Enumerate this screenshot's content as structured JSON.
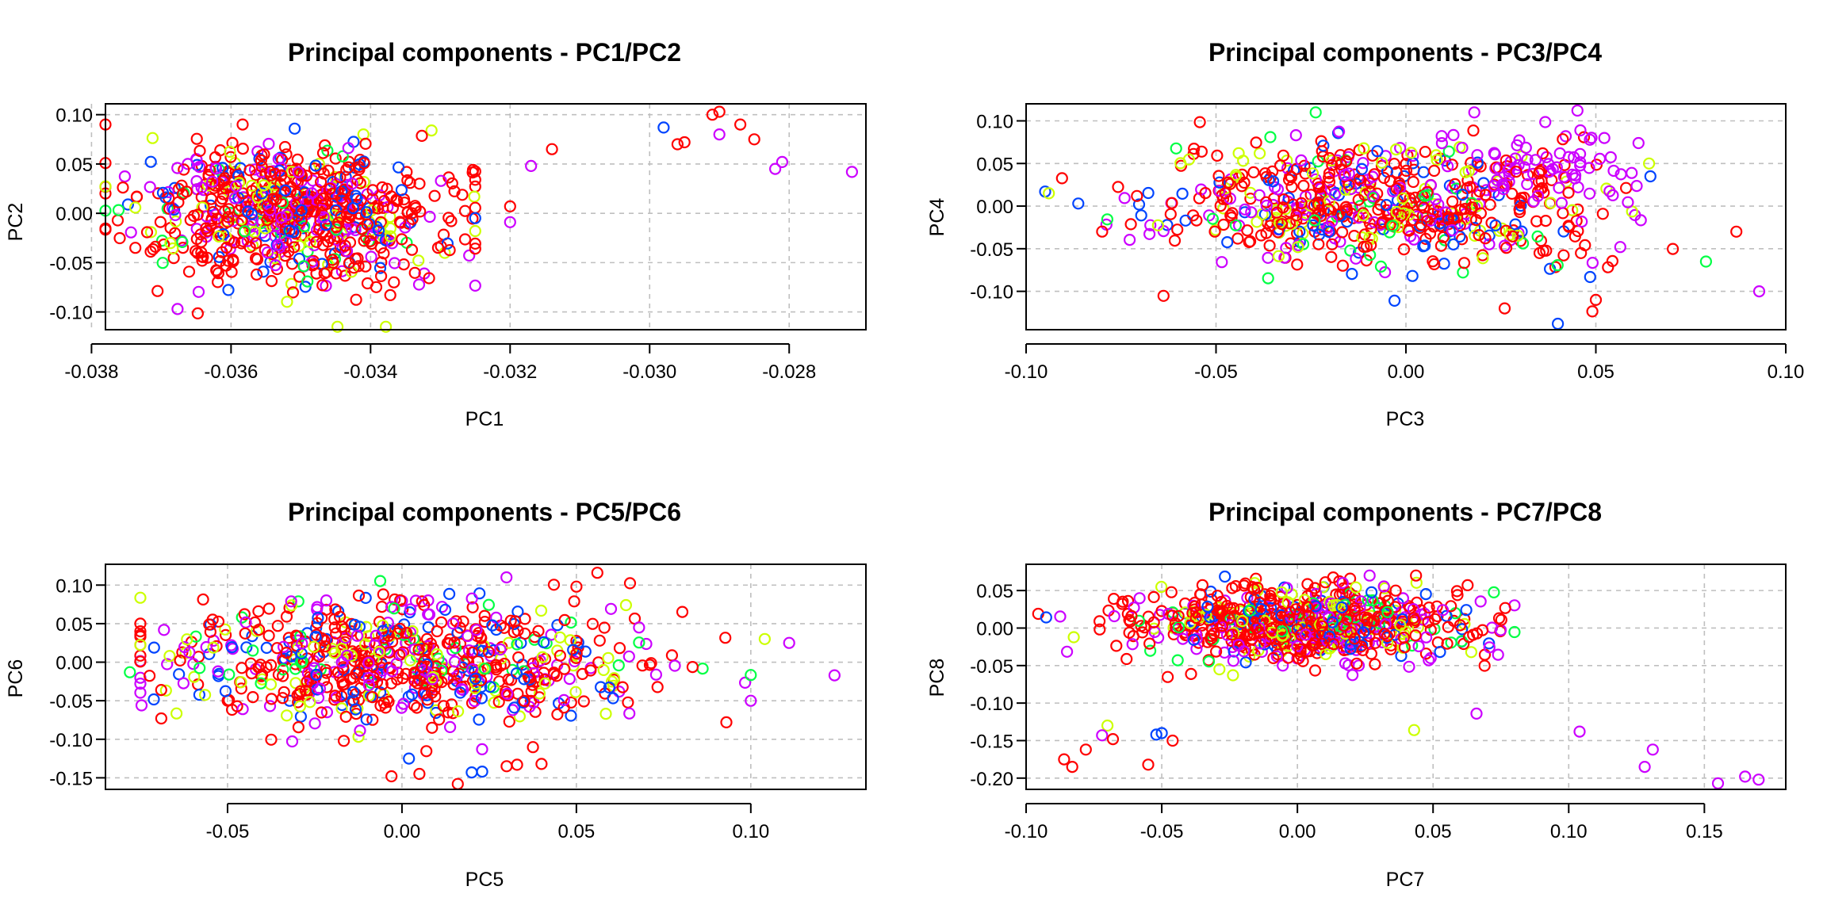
{
  "colors": {
    "red": "#ff0000",
    "magenta": "#cc00ff",
    "blue": "#0044ff",
    "yellow": "#ccff00",
    "green": "#00ff44",
    "grid": "#bfbfbf",
    "frame": "#000000"
  },
  "marker": "open-circle",
  "grid": true,
  "chart_data": [
    {
      "type": "scatter",
      "title": "Principal components - PC1/PC2",
      "xlabel": "PC1",
      "ylabel": "PC2",
      "xlim": [
        -0.0378,
        -0.0269
      ],
      "ylim": [
        -0.118,
        0.111
      ],
      "xticks": [
        -0.038,
        -0.036,
        -0.034,
        -0.032,
        -0.03,
        -0.028
      ],
      "xticklabels": [
        "-0.038",
        "-0.036",
        "-0.034",
        "-0.032",
        "-0.030",
        "-0.028"
      ],
      "yticks": [
        -0.1,
        -0.05,
        0,
        0.05,
        0.1
      ],
      "yticklabels": [
        "-0.10",
        "-0.05",
        "0.00",
        "0.05",
        "0.10"
      ],
      "cluster": {
        "cx": -0.0352,
        "sx": 0.0011,
        "xmin": -0.0378,
        "xmax": -0.0325,
        "cy": 0.0,
        "sy": 0.035,
        "ymin": -0.115,
        "ymax": 0.09
      },
      "outliers": [
        {
          "x": -0.0291,
          "y": 0.1,
          "c": "red"
        },
        {
          "x": -0.029,
          "y": 0.103,
          "c": "red"
        },
        {
          "x": -0.0287,
          "y": 0.09,
          "c": "red"
        },
        {
          "x": -0.0285,
          "y": 0.075,
          "c": "red"
        },
        {
          "x": -0.029,
          "y": 0.08,
          "c": "magenta"
        },
        {
          "x": -0.0296,
          "y": 0.07,
          "c": "red"
        },
        {
          "x": -0.0295,
          "y": 0.072,
          "c": "red"
        },
        {
          "x": -0.0298,
          "y": 0.087,
          "c": "blue"
        },
        {
          "x": -0.0281,
          "y": 0.052,
          "c": "magenta"
        },
        {
          "x": -0.0282,
          "y": 0.045,
          "c": "magenta"
        },
        {
          "x": -0.0271,
          "y": 0.042,
          "c": "magenta"
        },
        {
          "x": -0.0314,
          "y": 0.065,
          "c": "red"
        },
        {
          "x": -0.0317,
          "y": 0.048,
          "c": "magenta"
        },
        {
          "x": -0.032,
          "y": 0.007,
          "c": "red"
        },
        {
          "x": -0.032,
          "y": -0.009,
          "c": "magenta"
        }
      ]
    },
    {
      "type": "scatter",
      "title": "Principal components - PC3/PC4",
      "xlabel": "PC3",
      "ylabel": "PC4",
      "xlim": [
        -0.1,
        0.1
      ],
      "ylim": [
        -0.145,
        0.12
      ],
      "xticks": [
        -0.1,
        -0.05,
        0,
        0.05,
        0.1
      ],
      "xticklabels": [
        "-0.10",
        "-0.05",
        "0.00",
        "0.05",
        "0.10"
      ],
      "yticks": [
        -0.1,
        -0.05,
        0,
        0.05,
        0.1
      ],
      "yticklabels": [
        "-0.10",
        "-0.05",
        "0.00",
        "0.05",
        "0.10"
      ],
      "cluster": {
        "cx": -0.01,
        "sx": 0.03,
        "xmin": -0.095,
        "xmax": 0.09,
        "cy": 0.0,
        "sy": 0.035,
        "ymin": -0.135,
        "ymax": 0.11
      },
      "cluster2": {
        "cx": 0.04,
        "sx": 0.015,
        "cy": 0.045,
        "sy": 0.025,
        "n": 75,
        "c": "magenta"
      },
      "outliers": [
        {
          "x": -0.094,
          "y": 0.015,
          "c": "yellow"
        },
        {
          "x": 0.093,
          "y": -0.1,
          "c": "magenta"
        },
        {
          "x": 0.079,
          "y": -0.065,
          "c": "green"
        },
        {
          "x": 0.087,
          "y": -0.03,
          "c": "red"
        },
        {
          "x": 0.04,
          "y": -0.138,
          "c": "blue"
        },
        {
          "x": 0.026,
          "y": -0.12,
          "c": "red"
        },
        {
          "x": 0.018,
          "y": 0.11,
          "c": "magenta"
        },
        {
          "x": -0.003,
          "y": -0.111,
          "c": "blue"
        },
        {
          "x": 0.05,
          "y": -0.11,
          "c": "red"
        },
        {
          "x": 0.064,
          "y": 0.05,
          "c": "yellow"
        }
      ]
    },
    {
      "type": "scatter",
      "title": "Principal components - PC5/PC6",
      "xlabel": "PC5",
      "ylabel": "PC6",
      "xlim": [
        -0.085,
        0.133
      ],
      "ylim": [
        -0.165,
        0.127
      ],
      "xticks": [
        -0.05,
        0,
        0.05,
        0.1
      ],
      "xticklabels": [
        "-0.05",
        "0.00",
        "0.05",
        "0.10"
      ],
      "yticks": [
        -0.15,
        -0.1,
        -0.05,
        0,
        0.05,
        0.1
      ],
      "yticklabels": [
        "-0.15",
        "-0.10",
        "-0.05",
        "0.00",
        "0.05",
        "0.10"
      ],
      "cluster": {
        "cx": 0.0,
        "sx": 0.035,
        "xmin": -0.075,
        "xmax": 0.1,
        "cy": 0.0,
        "sy": 0.04,
        "ymin": -0.125,
        "ymax": 0.11
      },
      "outliers": [
        {
          "x": 0.124,
          "y": -0.017,
          "c": "magenta"
        },
        {
          "x": 0.111,
          "y": 0.025,
          "c": "magenta"
        },
        {
          "x": 0.104,
          "y": 0.03,
          "c": "yellow"
        },
        {
          "x": 0.1,
          "y": -0.05,
          "c": "magenta"
        },
        {
          "x": 0.093,
          "y": -0.078,
          "c": "red"
        },
        {
          "x": 0.056,
          "y": 0.116,
          "c": "red"
        },
        {
          "x": 0.05,
          "y": 0.098,
          "c": "red"
        },
        {
          "x": 0.016,
          "y": -0.158,
          "c": "red"
        },
        {
          "x": 0.005,
          "y": -0.145,
          "c": "red"
        },
        {
          "x": 0.02,
          "y": -0.143,
          "c": "blue"
        },
        {
          "x": 0.023,
          "y": -0.142,
          "c": "blue"
        },
        {
          "x": 0.03,
          "y": -0.135,
          "c": "red"
        },
        {
          "x": 0.04,
          "y": -0.132,
          "c": "red"
        },
        {
          "x": 0.033,
          "y": -0.133,
          "c": "red"
        },
        {
          "x": -0.003,
          "y": -0.148,
          "c": "red"
        },
        {
          "x": -0.069,
          "y": -0.073,
          "c": "red"
        },
        {
          "x": -0.078,
          "y": -0.013,
          "c": "green"
        }
      ]
    },
    {
      "type": "scatter",
      "title": "Principal components - PC7/PC8",
      "xlabel": "PC7",
      "ylabel": "PC8",
      "xlim": [
        -0.1,
        0.18
      ],
      "ylim": [
        -0.215,
        0.085
      ],
      "xticks": [
        -0.1,
        -0.05,
        0,
        0.05,
        0.1,
        0.15
      ],
      "xticklabels": [
        "-0.10",
        "-0.05",
        "0.00",
        "0.05",
        "0.10",
        "0.15"
      ],
      "yticks": [
        -0.2,
        -0.15,
        -0.1,
        -0.05,
        0,
        0.05
      ],
      "yticklabels": [
        "-0.20",
        "-0.15",
        "-0.10",
        "-0.05",
        "0.00",
        "0.05"
      ],
      "cluster": {
        "cx": 0.0,
        "sx": 0.032,
        "xmin": -0.098,
        "xmax": 0.08,
        "cy": 0.005,
        "sy": 0.025,
        "ymin": -0.1,
        "ymax": 0.07
      },
      "outliers": [
        {
          "x": 0.17,
          "y": -0.202,
          "c": "magenta"
        },
        {
          "x": 0.165,
          "y": -0.198,
          "c": "magenta"
        },
        {
          "x": 0.155,
          "y": -0.207,
          "c": "magenta"
        },
        {
          "x": 0.128,
          "y": -0.185,
          "c": "magenta"
        },
        {
          "x": 0.131,
          "y": -0.162,
          "c": "magenta"
        },
        {
          "x": 0.104,
          "y": -0.138,
          "c": "magenta"
        },
        {
          "x": 0.066,
          "y": -0.114,
          "c": "magenta"
        },
        {
          "x": 0.043,
          "y": -0.136,
          "c": "yellow"
        },
        {
          "x": -0.086,
          "y": -0.175,
          "c": "red"
        },
        {
          "x": -0.083,
          "y": -0.185,
          "c": "red"
        },
        {
          "x": -0.078,
          "y": -0.162,
          "c": "red"
        },
        {
          "x": -0.055,
          "y": -0.182,
          "c": "red"
        },
        {
          "x": -0.05,
          "y": -0.14,
          "c": "blue"
        },
        {
          "x": -0.052,
          "y": -0.142,
          "c": "blue"
        },
        {
          "x": -0.046,
          "y": -0.15,
          "c": "red"
        },
        {
          "x": -0.07,
          "y": -0.13,
          "c": "yellow"
        },
        {
          "x": -0.072,
          "y": -0.143,
          "c": "magenta"
        },
        {
          "x": -0.068,
          "y": -0.148,
          "c": "red"
        }
      ]
    }
  ]
}
